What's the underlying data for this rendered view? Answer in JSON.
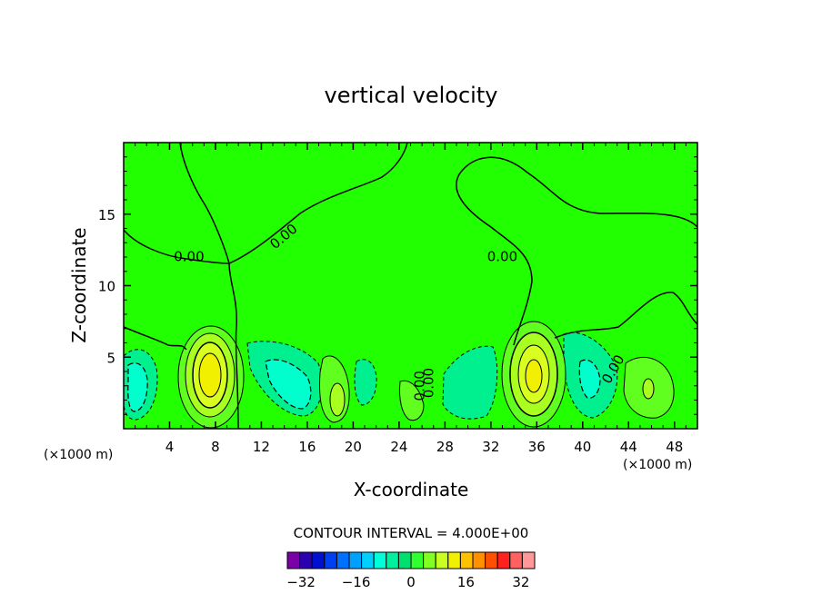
{
  "chart_data": {
    "type": "contour",
    "title": "vertical velocity",
    "xlabel": "X-coordinate",
    "ylabel": "Z-coordinate",
    "x_unit_left": "(×1000 m)",
    "x_unit_right": "(×1000 m)",
    "xlim": [
      0,
      50
    ],
    "ylim": [
      0,
      20
    ],
    "xticks": [
      4,
      8,
      12,
      16,
      20,
      24,
      28,
      32,
      36,
      40,
      44,
      48
    ],
    "yticks": [
      5,
      10,
      15
    ],
    "contour_interval_text": "CONTOUR INTERVAL = 4.000E+00",
    "contour_labels": [
      "0.00",
      "0.00",
      "0.00",
      "0.00",
      "0.00",
      "0.00"
    ],
    "colorbar": {
      "min": -36,
      "max": 36,
      "step": 4,
      "ticks": [
        "-32",
        "-16",
        "0",
        "16",
        "32"
      ],
      "colors": [
        "#7a00a8",
        "#2a00b0",
        "#0010d0",
        "#0040f0",
        "#0070ff",
        "#00a0ff",
        "#00d0ff",
        "#00ffd8",
        "#00f0a0",
        "#00e070",
        "#30ff30",
        "#80ff20",
        "#c8ff20",
        "#f0f000",
        "#ffc000",
        "#ff9000",
        "#ff5000",
        "#ff2020",
        "#ff6060",
        "#ff9898"
      ]
    },
    "background_color": "#22ff00",
    "features": [
      {
        "kind": "max",
        "x": 7.6,
        "z": 3.0,
        "value": 20
      },
      {
        "kind": "min",
        "x": 3.0,
        "z": 3.0,
        "value": -8
      },
      {
        "kind": "min",
        "x": 15.0,
        "z": 3.0,
        "value": -8
      },
      {
        "kind": "max",
        "x": 18.8,
        "z": 2.0,
        "value": 8
      },
      {
        "kind": "min",
        "x": 21.5,
        "z": 3.5,
        "value": -4
      },
      {
        "kind": "max",
        "x": 24.0,
        "z": 3.0,
        "value": 4
      },
      {
        "kind": "min",
        "x": 29.5,
        "z": 3.5,
        "value": -4
      },
      {
        "kind": "max",
        "x": 35.0,
        "z": 3.5,
        "value": 16
      },
      {
        "kind": "min",
        "x": 40.0,
        "z": 3.5,
        "value": -8
      },
      {
        "kind": "max",
        "x": 45.5,
        "z": 3.0,
        "value": 8
      }
    ]
  }
}
